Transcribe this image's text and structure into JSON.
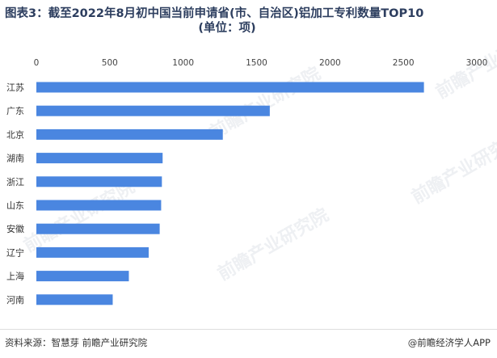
{
  "header": {
    "title_line1": "图表3：截至2022年8月初中国当前申请省(市、自治区)铝加工专利数量TOP10",
    "title_line2": "(单位：项)"
  },
  "watermark_text": "前瞻产业研究院",
  "footer": {
    "source": "资料来源：智慧芽 前瞻产业研究院",
    "brand": "@前瞻经济学人APP"
  },
  "colors": {
    "bar": "#4a86e0",
    "title": "#2d3e5f"
  },
  "chart_data": {
    "type": "bar",
    "orientation": "horizontal",
    "categories": [
      "江苏",
      "广东",
      "北京",
      "湖南",
      "浙江",
      "山东",
      "安徽",
      "辽宁",
      "上海",
      "河南"
    ],
    "values": [
      2640,
      1590,
      1270,
      860,
      855,
      850,
      840,
      765,
      630,
      520
    ],
    "xlim": [
      0,
      3000
    ],
    "xticks": [
      0,
      500,
      1000,
      1500,
      2000,
      2500,
      3000
    ],
    "xaxis_position": "top",
    "grid": false,
    "legend": "none"
  }
}
